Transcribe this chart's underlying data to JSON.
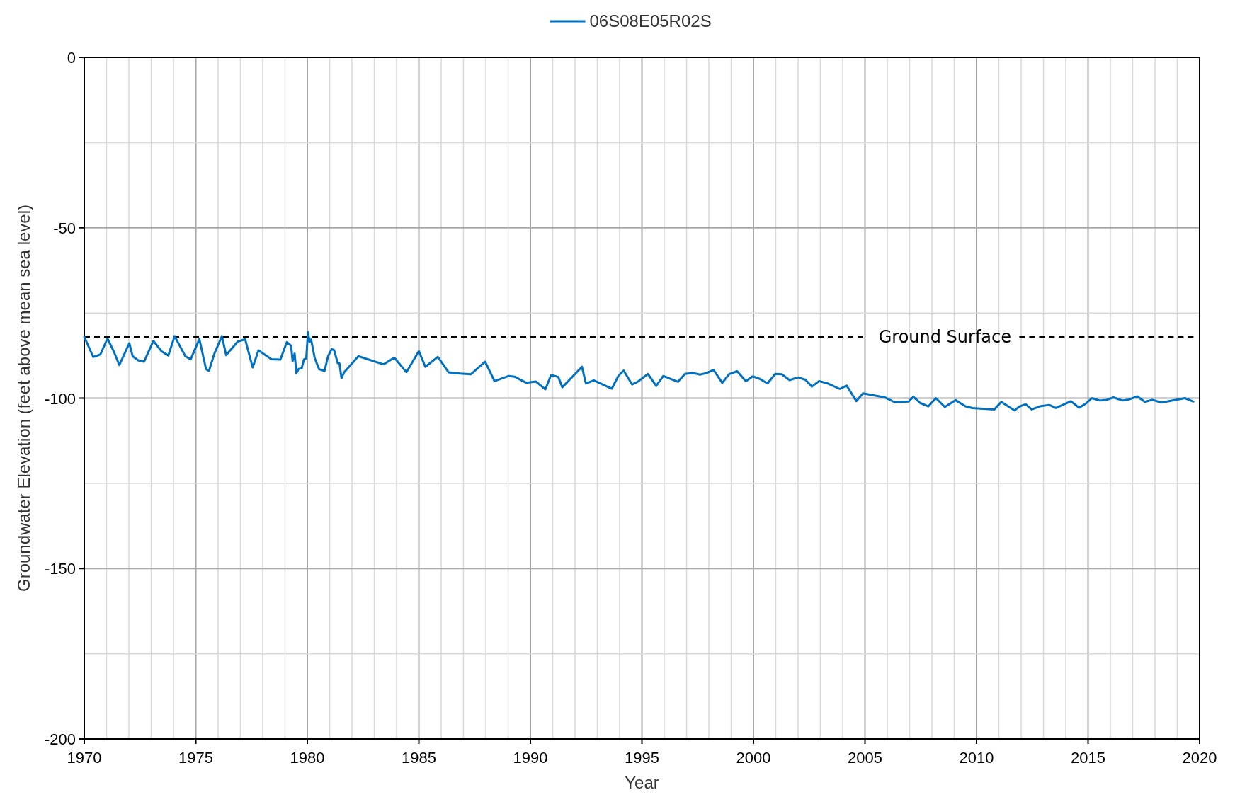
{
  "chart_data": {
    "type": "line",
    "xlabel": "Year",
    "ylabel": "Groundwater Elevation (feet above mean sea level)",
    "xlim": [
      1970,
      2020
    ],
    "xticks": [
      1970,
      {
        "value": 1971,
        "label": null
      },
      {
        "value": 1972,
        "label": null
      },
      {
        "value": 1973,
        "label": null
      },
      {
        "value": 1974,
        "label": null
      },
      1975,
      {
        "value": 1976,
        "label": null
      },
      {
        "value": 1977,
        "label": null
      },
      {
        "value": 1978,
        "label": null
      },
      {
        "value": 1979,
        "label": null
      },
      1980,
      {
        "value": 1981,
        "label": null
      },
      {
        "value": 1982,
        "label": null
      },
      {
        "value": 1983,
        "label": null
      },
      {
        "value": 1984,
        "label": null
      },
      1985,
      {
        "value": 1986,
        "label": null
      },
      {
        "value": 1987,
        "label": null
      },
      {
        "value": 1988,
        "label": null
      },
      {
        "value": 1989,
        "label": null
      },
      1990,
      {
        "value": 1991,
        "label": null
      },
      {
        "value": 1992,
        "label": null
      },
      {
        "value": 1993,
        "label": null
      },
      {
        "value": 1994,
        "label": null
      },
      1995,
      {
        "value": 1996,
        "label": null
      },
      {
        "value": 1997,
        "label": null
      },
      {
        "value": 1998,
        "label": null
      },
      {
        "value": 1999,
        "label": null
      },
      2000,
      {
        "value": 2001,
        "label": null
      },
      {
        "value": 2002,
        "label": null
      },
      {
        "value": 2003,
        "label": null
      },
      {
        "value": 2004,
        "label": null
      },
      2005,
      {
        "value": 2006,
        "label": null
      },
      {
        "value": 2007,
        "label": null
      },
      {
        "value": 2008,
        "label": null
      },
      {
        "value": 2009,
        "label": null
      },
      2010,
      {
        "value": 2011,
        "label": null
      },
      {
        "value": 2012,
        "label": null
      },
      {
        "value": 2013,
        "label": null
      },
      {
        "value": 2014,
        "label": null
      },
      2015,
      {
        "value": 2016,
        "label": null
      },
      {
        "value": 2017,
        "label": null
      },
      {
        "value": 2018,
        "label": null
      },
      {
        "value": 2019,
        "label": null
      },
      2020
    ],
    "ylim": [
      -200,
      0
    ],
    "yticks": [
      -200,
      {
        "value": -175,
        "label": null
      },
      -150,
      {
        "value": -125,
        "label": null
      },
      -100,
      {
        "value": -75,
        "label": null
      },
      -50,
      {
        "value": -25,
        "label": null
      },
      0
    ],
    "grid": true,
    "legend": "top",
    "line_style": "solid",
    "marker": "none",
    "ref_lines": [
      {
        "axis": "y",
        "value": -82,
        "label": "Ground Surface",
        "color": "#000000",
        "line_style": "dashed"
      }
    ],
    "series": [
      {
        "name": "06S08E05R02S",
        "color": "#0070c0",
        "x": [
          1970.0,
          1970.4,
          1970.72,
          1971.04,
          1971.35,
          1971.57,
          1972.02,
          1972.17,
          1972.41,
          1972.68,
          1973.1,
          1973.47,
          1973.77,
          1974.05,
          1974.53,
          1974.77,
          1975.16,
          1975.46,
          1975.59,
          1975.83,
          1976.17,
          1976.36,
          1976.88,
          1977.21,
          1977.55,
          1977.81,
          1978.39,
          1978.79,
          1979.08,
          1979.27,
          1979.34,
          1979.43,
          1979.51,
          1979.61,
          1979.75,
          1979.85,
          1979.95,
          1980.03,
          1980.1,
          1980.17,
          1980.33,
          1980.4,
          1980.53,
          1980.77,
          1980.93,
          1981.09,
          1981.2,
          1981.36,
          1981.44,
          1981.53,
          1981.65,
          1982.29,
          1983.42,
          1983.9,
          1984.44,
          1985.0,
          1985.29,
          1985.85,
          1986.33,
          1986.86,
          1987.33,
          1987.97,
          1988.39,
          1989.03,
          1989.29,
          1989.82,
          1990.24,
          1990.67,
          1990.93,
          1991.25,
          1991.43,
          1992.31,
          1992.49,
          1992.84,
          1993.65,
          1993.95,
          1994.18,
          1994.56,
          1994.81,
          1995.27,
          1995.64,
          1995.96,
          1996.61,
          1996.93,
          1997.28,
          1997.6,
          1997.91,
          1998.21,
          1998.6,
          1998.92,
          1999.27,
          1999.66,
          1999.96,
          2000.3,
          2000.63,
          2000.98,
          2001.27,
          2001.62,
          2001.99,
          2002.33,
          2002.62,
          2002.94,
          2003.34,
          2003.87,
          2004.18,
          2004.61,
          2004.91,
          2005.9,
          2006.33,
          2006.96,
          2007.17,
          2007.47,
          2007.84,
          2008.18,
          2008.58,
          2009.06,
          2009.5,
          2009.82,
          2010.8,
          2011.11,
          2011.7,
          2011.94,
          2012.2,
          2012.47,
          2012.84,
          2013.26,
          2013.56,
          2014.23,
          2014.6,
          2014.9,
          2015.17,
          2015.53,
          2015.83,
          2016.14,
          2016.54,
          2016.83,
          2017.2,
          2017.55,
          2017.88,
          2018.29,
          2019.34,
          2019.72
        ],
        "values": [
          -82,
          -87.9,
          -87.2,
          -82.5,
          -86.7,
          -90.3,
          -83.9,
          -87.7,
          -88.9,
          -89.3,
          -83.2,
          -86.3,
          -87.5,
          -81.8,
          -87.7,
          -88.6,
          -82.7,
          -91.5,
          -92,
          -87,
          -81.8,
          -87.4,
          -83.4,
          -82.7,
          -91,
          -86,
          -88.6,
          -88.7,
          -83.6,
          -84.6,
          -89.1,
          -86.9,
          -92.7,
          -91.4,
          -91.2,
          -88.6,
          -88.4,
          -80.6,
          -83.5,
          -82.8,
          -88.2,
          -89.4,
          -91.5,
          -92,
          -87.7,
          -85.6,
          -85.9,
          -89.7,
          -89.8,
          -94.1,
          -92.4,
          -87.7,
          -90.1,
          -88.1,
          -92.4,
          -86.2,
          -90.8,
          -87.9,
          -92.4,
          -92.8,
          -93,
          -89.3,
          -95,
          -93.5,
          -93.7,
          -95.5,
          -95.1,
          -97.4,
          -93.2,
          -93.8,
          -96.8,
          -90.8,
          -95.7,
          -94.8,
          -97.2,
          -93.4,
          -91.9,
          -96,
          -95.2,
          -92.9,
          -96.4,
          -93.5,
          -95.2,
          -92.9,
          -92.6,
          -93.1,
          -92.6,
          -91.7,
          -95.5,
          -92.9,
          -92.1,
          -95,
          -93.6,
          -94.4,
          -95.7,
          -92.9,
          -93,
          -94.7,
          -93.9,
          -94.6,
          -96.6,
          -95,
          -95.7,
          -97.3,
          -96.3,
          -100.9,
          -98.6,
          -99.8,
          -101.2,
          -101,
          -99.6,
          -101.4,
          -102.4,
          -100,
          -102.6,
          -100.6,
          -102.4,
          -102.9,
          -103.3,
          -101.1,
          -103.6,
          -102.4,
          -101.8,
          -103.3,
          -102.4,
          -102,
          -102.9,
          -100.9,
          -102.8,
          -101.6,
          -100,
          -100.7,
          -100.5,
          -99.8,
          -100.7,
          -100.4,
          -99.5,
          -101.1,
          -100.5,
          -101.3,
          -100,
          -101
        ]
      }
    ]
  }
}
